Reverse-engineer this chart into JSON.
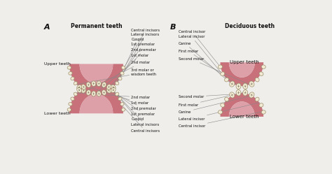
{
  "background_color": "#f0eeeb",
  "title_A": "Permanent teeth",
  "title_B": "Deciduous teeth",
  "label_A": "A",
  "label_B": "B",
  "gum_color": "#c8717b",
  "gum_dark": "#b05060",
  "palate_color": "#dda0a8",
  "tooth_color": "#f2ead4",
  "tooth_outline": "#9a8f6a",
  "tooth_detail": "#707050",
  "label_line_color": "#888888",
  "text_color": "#111111",
  "upper_labels_A": [
    "Central incisors",
    "Lateral incisors",
    "Cuspid",
    "1st premolar",
    "2nd premolar",
    "1st molar",
    "2nd molar",
    "3rd molar or\nwisdom teeth"
  ],
  "lower_labels_A": [
    "2nd molar",
    "1st molar",
    "2nd premolar",
    "1st premolar",
    "Cuspid",
    "Lateral incisors",
    "Central incisors"
  ],
  "upper_labels_B": [
    "Central incisor",
    "Lateral incisor",
    "Canine",
    "First molar",
    "Second molar"
  ],
  "lower_labels_B": [
    "Second molar",
    "First molar",
    "Canine",
    "Lateral incisor",
    "Central incisor"
  ],
  "side_label_upper_A": "Upper teeth",
  "side_label_lower_A": "Lower teeth",
  "inner_label_upper_B": "Upper teeth",
  "inner_label_lower_B": "Lower teeth"
}
